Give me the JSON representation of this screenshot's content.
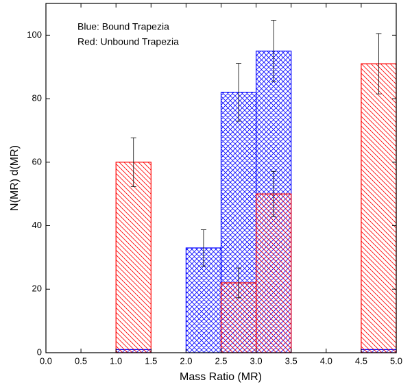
{
  "chart_data": {
    "type": "histogram",
    "x_label": "Mass Ratio (MR)",
    "y_label": "N(MR) d(MR)",
    "annotations": [
      "Blue: Bound Trapezia",
      "Red: Unbound Trapezia"
    ],
    "bins": [
      0,
      0.5,
      1,
      1.5,
      2,
      2.5,
      3,
      3.5,
      4,
      4.5,
      5
    ],
    "series": [
      {
        "color": "#0000ff",
        "hatch": "cross",
        "values": [
          0,
          0,
          1,
          0,
          33,
          82,
          95,
          0,
          0,
          1
        ],
        "errors": [
          null,
          null,
          null,
          null,
          5.7,
          9.1,
          9.7,
          null,
          null,
          null
        ]
      },
      {
        "color": "#ff0000",
        "hatch": "diagonal",
        "values": [
          0,
          0,
          60,
          0,
          0,
          22,
          50,
          0,
          0,
          91
        ],
        "errors": [
          null,
          null,
          7.7,
          null,
          null,
          4.7,
          7.1,
          null,
          null,
          9.5
        ]
      }
    ],
    "xlim": [
      0,
      5
    ],
    "ylim": [
      0,
      110
    ],
    "xticks": [
      {
        "value": 0,
        "label": "0.0"
      },
      {
        "value": 0.5,
        "label": "0.5"
      },
      {
        "value": 1,
        "label": "1.0"
      },
      {
        "value": 1.5,
        "label": "1.5"
      },
      {
        "value": 2,
        "label": "2.0"
      },
      {
        "value": 2.5,
        "label": "2.5"
      },
      {
        "value": 3,
        "label": "3.0"
      },
      {
        "value": 3.5,
        "label": "3.5"
      },
      {
        "value": 4,
        "label": "4.0"
      },
      {
        "value": 4.5,
        "label": "4.5"
      },
      {
        "value": 5,
        "label": "5.0"
      }
    ],
    "yticks": [
      0,
      20,
      40,
      60,
      80,
      100
    ],
    "grid": false
  }
}
